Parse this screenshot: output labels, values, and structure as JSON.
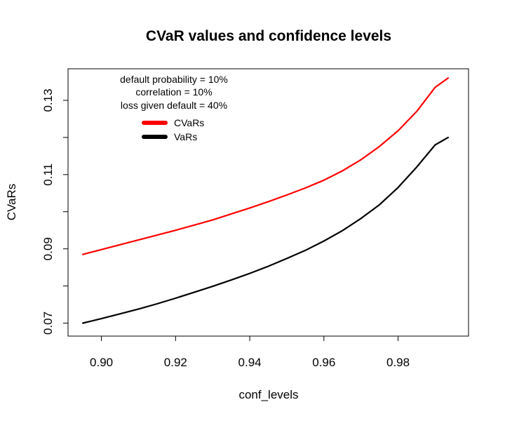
{
  "chart_data": {
    "type": "line",
    "title": "CVaR values and confidence levels",
    "xlabel": "conf_levels",
    "ylabel": "CVaRs",
    "xlim": [
      0.891,
      0.999
    ],
    "ylim": [
      0.0665,
      0.1385
    ],
    "x_ticks": [
      0.9,
      0.92,
      0.94,
      0.96,
      0.98
    ],
    "x_tick_labels": [
      "0.90",
      "0.92",
      "0.94",
      "0.96",
      "0.98"
    ],
    "y_ticks": [
      0.07,
      0.08,
      0.09,
      0.1,
      0.11,
      0.12,
      0.13
    ],
    "y_tick_labels": [
      "0.07",
      "",
      "0.09",
      "",
      "0.11",
      "",
      "0.13"
    ],
    "annotations": [
      "default probability = 10%",
      "correlation = 10%",
      "loss given default = 40%"
    ],
    "legend": {
      "placement": "top-left"
    },
    "x": [
      0.895,
      0.9,
      0.905,
      0.91,
      0.915,
      0.92,
      0.925,
      0.93,
      0.935,
      0.94,
      0.945,
      0.95,
      0.955,
      0.96,
      0.965,
      0.97,
      0.975,
      0.98,
      0.985,
      0.99,
      0.9935
    ],
    "series": [
      {
        "name": "CVaRs",
        "color": "#ff0000",
        "values": [
          0.0885,
          0.0898,
          0.0911,
          0.0924,
          0.0937,
          0.095,
          0.0964,
          0.0978,
          0.0994,
          0.101,
          0.1027,
          0.1045,
          0.1064,
          0.1085,
          0.111,
          0.114,
          0.1176,
          0.1218,
          0.127,
          0.1335,
          0.136
        ]
      },
      {
        "name": "VaRs",
        "color": "#000000",
        "values": [
          0.07,
          0.0712,
          0.0725,
          0.0738,
          0.0752,
          0.0767,
          0.0783,
          0.0799,
          0.0816,
          0.0834,
          0.0853,
          0.0874,
          0.0896,
          0.0921,
          0.0949,
          0.0982,
          0.1019,
          0.1065,
          0.112,
          0.118,
          0.12
        ]
      }
    ]
  }
}
